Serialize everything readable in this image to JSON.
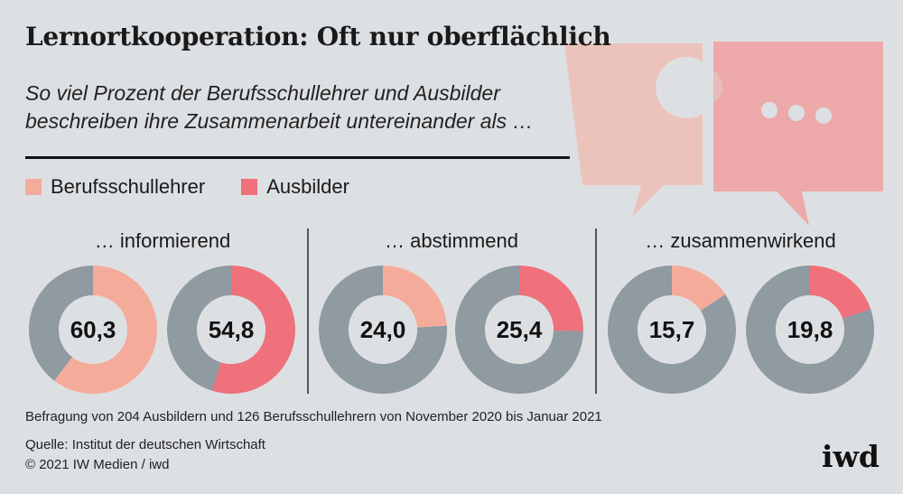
{
  "title": "Lernortkooperation: Oft nur oberflächlich",
  "subtitle": "So viel Prozent der Berufsschullehrer und Ausbilder beschreiben ihre Zusammenarbeit untereinander als …",
  "colors": {
    "berufsschullehrer": "#f5ab9a",
    "ausbilder": "#ef717b",
    "rest": "#8f9aa1",
    "background": "#dde0e3"
  },
  "legend": [
    {
      "label": "Berufsschullehrer",
      "color": "#f5ab9a"
    },
    {
      "label": "Ausbilder",
      "color": "#ef717b"
    }
  ],
  "chart_data": {
    "type": "pie",
    "unit": "Prozent",
    "series_names": [
      "Berufsschullehrer",
      "Ausbilder"
    ],
    "groups": [
      {
        "label": "… informierend",
        "values": [
          {
            "series": "Berufsschullehrer",
            "value": 60.3,
            "label": "60,3"
          },
          {
            "series": "Ausbilder",
            "value": 54.8,
            "label": "54,8"
          }
        ]
      },
      {
        "label": "… abstimmend",
        "values": [
          {
            "series": "Berufsschullehrer",
            "value": 24.0,
            "label": "24,0"
          },
          {
            "series": "Ausbilder",
            "value": 25.4,
            "label": "25,4"
          }
        ]
      },
      {
        "label": "… zusammenwirkend",
        "values": [
          {
            "series": "Berufsschullehrer",
            "value": 15.7,
            "label": "15,7"
          },
          {
            "series": "Ausbilder",
            "value": 19.8,
            "label": "19,8"
          }
        ]
      }
    ]
  },
  "footnote": "Befragung von 204 Ausbildern und 126 Berufsschullehrern von November 2020 bis Januar 2021",
  "source": "Quelle: Institut der deutschen Wirtschaft",
  "copyright": "© 2021 IW Medien / iwd",
  "logo": "iwd",
  "decoration_icon": "puzzle-speech-bubbles-icon"
}
